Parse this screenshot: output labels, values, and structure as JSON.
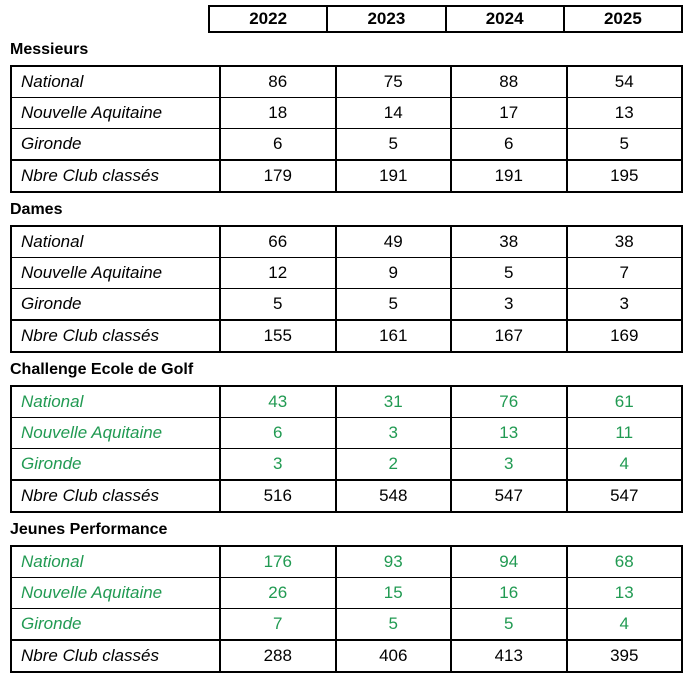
{
  "colors": {
    "green_text": "#219a52",
    "black_text": "#000000",
    "border": "#000000",
    "background": "#ffffff"
  },
  "year_header": {
    "years": [
      "2022",
      "2023",
      "2024",
      "2025"
    ]
  },
  "sections": [
    {
      "title": "Messieurs",
      "rows": [
        {
          "label": "National",
          "green": false,
          "values": [
            "86",
            "75",
            "88",
            "54"
          ]
        },
        {
          "label": "Nouvelle Aquitaine",
          "green": false,
          "values": [
            "18",
            "14",
            "17",
            "13"
          ]
        },
        {
          "label": "Gironde",
          "green": false,
          "values": [
            "6",
            "5",
            "6",
            "5"
          ]
        },
        {
          "label": "Nbre Club classés",
          "green": false,
          "values": [
            "179",
            "191",
            "191",
            "195"
          ]
        }
      ]
    },
    {
      "title": "Dames",
      "rows": [
        {
          "label": "National",
          "green": false,
          "values": [
            "66",
            "49",
            "38",
            "38"
          ]
        },
        {
          "label": "Nouvelle Aquitaine",
          "green": false,
          "values": [
            "12",
            "9",
            "5",
            "7"
          ]
        },
        {
          "label": "Gironde",
          "green": false,
          "values": [
            "5",
            "5",
            "3",
            "3"
          ]
        },
        {
          "label": "Nbre Club classés",
          "green": false,
          "values": [
            "155",
            "161",
            "167",
            "169"
          ]
        }
      ]
    },
    {
      "title": "Challenge Ecole de Golf",
      "rows": [
        {
          "label": "National",
          "green": true,
          "values": [
            "43",
            "31",
            "76",
            "61"
          ]
        },
        {
          "label": "Nouvelle Aquitaine",
          "green": true,
          "values": [
            "6",
            "3",
            "13",
            "11"
          ]
        },
        {
          "label": "Gironde",
          "green": true,
          "values": [
            "3",
            "2",
            "3",
            "4"
          ]
        },
        {
          "label": "Nbre Club classés",
          "green": false,
          "values": [
            "516",
            "548",
            "547",
            "547"
          ]
        }
      ]
    },
    {
      "title": "Jeunes Performance",
      "rows": [
        {
          "label": "National",
          "green": true,
          "values": [
            "176",
            "93",
            "94",
            "68"
          ]
        },
        {
          "label": "Nouvelle Aquitaine",
          "green": true,
          "values": [
            "26",
            "15",
            "16",
            "13"
          ]
        },
        {
          "label": "Gironde",
          "green": true,
          "values": [
            "7",
            "5",
            "5",
            "4"
          ]
        },
        {
          "label": "Nbre Club classés",
          "green": false,
          "values": [
            "288",
            "406",
            "413",
            "395"
          ]
        }
      ]
    }
  ]
}
